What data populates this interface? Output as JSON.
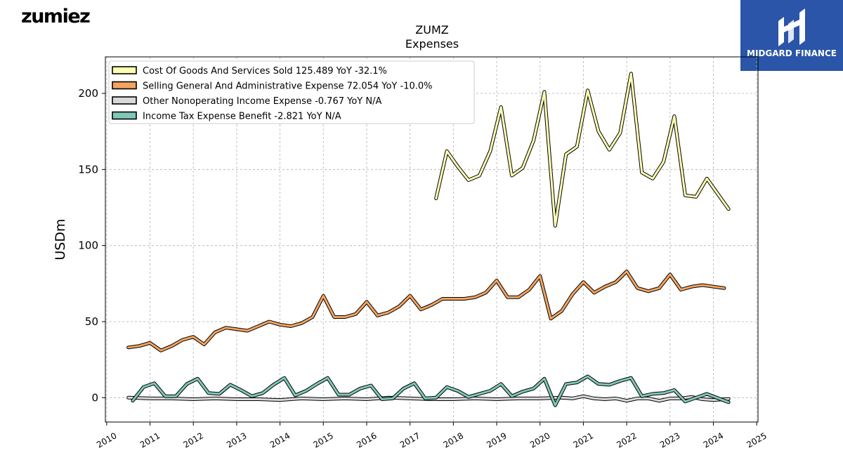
{
  "brand": {
    "logo_text": "zumiez"
  },
  "sponsor": {
    "name": "MIDGARD FINANCE"
  },
  "colors": {
    "cogs": "#ffffb3",
    "sga": "#f4a460",
    "other": "#d9d9d9",
    "tax": "#7fc8b8",
    "outline": "#000000",
    "sponsor_bg": "#2a55a8"
  },
  "chart_data": {
    "type": "line",
    "title": "ZUMZ",
    "subtitle": "Expenses",
    "xlabel": "",
    "ylabel": "USDm",
    "xlim": [
      2009.97,
      2025.03
    ],
    "ylim": [
      -16,
      224
    ],
    "x_ticks": [
      "2010",
      "2011",
      "2012",
      "2013",
      "2014",
      "2015",
      "2016",
      "2017",
      "2018",
      "2019",
      "2020",
      "2021",
      "2022",
      "2023",
      "2024",
      "2025"
    ],
    "y_ticks": [
      0,
      50,
      100,
      150,
      200
    ],
    "grid": true,
    "legend_position": "top-left",
    "series": [
      {
        "name": "Cost Of Goods And Services Sold  125.489 YoY -32.1%",
        "key": "cogs",
        "points": [
          [
            2017.6,
            131
          ],
          [
            2017.85,
            162
          ],
          [
            2018.1,
            152
          ],
          [
            2018.35,
            143
          ],
          [
            2018.6,
            146
          ],
          [
            2018.85,
            162
          ],
          [
            2019.1,
            191
          ],
          [
            2019.35,
            146
          ],
          [
            2019.6,
            151
          ],
          [
            2019.85,
            169
          ],
          [
            2020.1,
            201
          ],
          [
            2020.35,
            113
          ],
          [
            2020.6,
            160
          ],
          [
            2020.85,
            165
          ],
          [
            2021.1,
            202
          ],
          [
            2021.35,
            175
          ],
          [
            2021.6,
            163
          ],
          [
            2021.85,
            174
          ],
          [
            2022.1,
            213
          ],
          [
            2022.35,
            148
          ],
          [
            2022.6,
            144
          ],
          [
            2022.85,
            155
          ],
          [
            2023.1,
            185
          ],
          [
            2023.35,
            133
          ],
          [
            2023.6,
            132
          ],
          [
            2023.85,
            144
          ],
          [
            2024.35,
            124
          ]
        ]
      },
      {
        "name": "Selling General And Administrative Expense  72.054 YoY -10.0%",
        "key": "sga",
        "points": [
          [
            2010.5,
            33
          ],
          [
            2010.75,
            34
          ],
          [
            2011.0,
            36
          ],
          [
            2011.25,
            31
          ],
          [
            2011.5,
            34
          ],
          [
            2011.75,
            38
          ],
          [
            2012.0,
            40
          ],
          [
            2012.25,
            35
          ],
          [
            2012.5,
            43
          ],
          [
            2012.75,
            46
          ],
          [
            2013.0,
            45
          ],
          [
            2013.25,
            44
          ],
          [
            2013.5,
            47
          ],
          [
            2013.75,
            50
          ],
          [
            2014.0,
            48
          ],
          [
            2014.25,
            47
          ],
          [
            2014.5,
            49
          ],
          [
            2014.75,
            53
          ],
          [
            2015.0,
            67
          ],
          [
            2015.25,
            53
          ],
          [
            2015.5,
            53
          ],
          [
            2015.75,
            55
          ],
          [
            2016.0,
            63
          ],
          [
            2016.25,
            54
          ],
          [
            2016.5,
            56
          ],
          [
            2016.75,
            60
          ],
          [
            2017.0,
            67
          ],
          [
            2017.25,
            58
          ],
          [
            2017.5,
            61
          ],
          [
            2017.75,
            65
          ],
          [
            2018.0,
            65
          ],
          [
            2018.25,
            65
          ],
          [
            2018.5,
            66
          ],
          [
            2018.75,
            69
          ],
          [
            2019.0,
            77
          ],
          [
            2019.25,
            66
          ],
          [
            2019.5,
            66
          ],
          [
            2019.75,
            71
          ],
          [
            2020.0,
            80
          ],
          [
            2020.25,
            52
          ],
          [
            2020.5,
            57
          ],
          [
            2020.75,
            68
          ],
          [
            2021.0,
            76
          ],
          [
            2021.25,
            69
          ],
          [
            2021.5,
            73
          ],
          [
            2021.75,
            76
          ],
          [
            2022.0,
            83
          ],
          [
            2022.25,
            72
          ],
          [
            2022.5,
            70
          ],
          [
            2022.75,
            72
          ],
          [
            2023.0,
            81
          ],
          [
            2023.25,
            71
          ],
          [
            2023.5,
            73
          ],
          [
            2023.75,
            74
          ],
          [
            2024.25,
            72
          ]
        ]
      },
      {
        "name": "Other Nonoperating Income Expense  -0.767 YoY N/A",
        "key": "other",
        "points": [
          [
            2010.5,
            0
          ],
          [
            2011.0,
            -0.5
          ],
          [
            2011.5,
            -0.5
          ],
          [
            2012.0,
            -1
          ],
          [
            2012.5,
            -0.5
          ],
          [
            2013.0,
            -1
          ],
          [
            2013.5,
            -1
          ],
          [
            2014.0,
            -1.5
          ],
          [
            2014.5,
            -0.5
          ],
          [
            2015.0,
            -1
          ],
          [
            2015.5,
            -0.5
          ],
          [
            2016.0,
            -1
          ],
          [
            2016.5,
            0
          ],
          [
            2017.0,
            -0.5
          ],
          [
            2017.5,
            -1
          ],
          [
            2018.0,
            -1
          ],
          [
            2018.5,
            -0.5
          ],
          [
            2019.0,
            -1
          ],
          [
            2019.5,
            -0.5
          ],
          [
            2020.0,
            -0.5
          ],
          [
            2020.5,
            0
          ],
          [
            2020.75,
            -0.5
          ],
          [
            2021.0,
            1
          ],
          [
            2021.25,
            -0.5
          ],
          [
            2021.5,
            -1
          ],
          [
            2021.75,
            -0.5
          ],
          [
            2022.0,
            -2
          ],
          [
            2022.25,
            -0.5
          ],
          [
            2022.5,
            -0.5
          ],
          [
            2022.75,
            -2
          ],
          [
            2023.0,
            -0.5
          ],
          [
            2023.25,
            -0.5
          ],
          [
            2023.5,
            0.5
          ],
          [
            2023.75,
            -1
          ],
          [
            2024.0,
            -1.5
          ],
          [
            2024.35,
            -0.8
          ]
        ]
      },
      {
        "name": "Income Tax Expense Benefit  -2.821 YoY N/A",
        "key": "tax",
        "points": [
          [
            2010.6,
            -2
          ],
          [
            2010.85,
            7
          ],
          [
            2011.1,
            9.5
          ],
          [
            2011.35,
            1
          ],
          [
            2011.6,
            1
          ],
          [
            2011.85,
            9
          ],
          [
            2012.1,
            12.5
          ],
          [
            2012.35,
            3
          ],
          [
            2012.6,
            2.5
          ],
          [
            2012.85,
            8.5
          ],
          [
            2013.1,
            5
          ],
          [
            2013.35,
            1
          ],
          [
            2013.6,
            3
          ],
          [
            2013.85,
            8.5
          ],
          [
            2014.1,
            13
          ],
          [
            2014.35,
            1.5
          ],
          [
            2014.6,
            4.5
          ],
          [
            2014.85,
            9
          ],
          [
            2015.1,
            13
          ],
          [
            2015.35,
            2
          ],
          [
            2015.6,
            2
          ],
          [
            2015.85,
            6
          ],
          [
            2016.1,
            8
          ],
          [
            2016.35,
            -1
          ],
          [
            2016.6,
            -0.5
          ],
          [
            2016.85,
            6
          ],
          [
            2017.1,
            9.5
          ],
          [
            2017.35,
            -0.5
          ],
          [
            2017.6,
            0
          ],
          [
            2017.85,
            7
          ],
          [
            2018.1,
            4.5
          ],
          [
            2018.35,
            0.5
          ],
          [
            2018.6,
            2.5
          ],
          [
            2018.85,
            4.5
          ],
          [
            2019.1,
            9
          ],
          [
            2019.35,
            1
          ],
          [
            2019.6,
            4
          ],
          [
            2019.85,
            6
          ],
          [
            2020.1,
            12.5
          ],
          [
            2020.35,
            -5
          ],
          [
            2020.6,
            9
          ],
          [
            2020.85,
            10
          ],
          [
            2021.1,
            14
          ],
          [
            2021.35,
            9
          ],
          [
            2021.6,
            8.5
          ],
          [
            2021.85,
            11
          ],
          [
            2022.1,
            13
          ],
          [
            2022.35,
            1
          ],
          [
            2022.6,
            2.5
          ],
          [
            2022.85,
            3
          ],
          [
            2023.1,
            5
          ],
          [
            2023.35,
            -2.5
          ],
          [
            2023.6,
            0
          ],
          [
            2023.85,
            2.5
          ],
          [
            2024.35,
            -3
          ]
        ]
      }
    ]
  }
}
